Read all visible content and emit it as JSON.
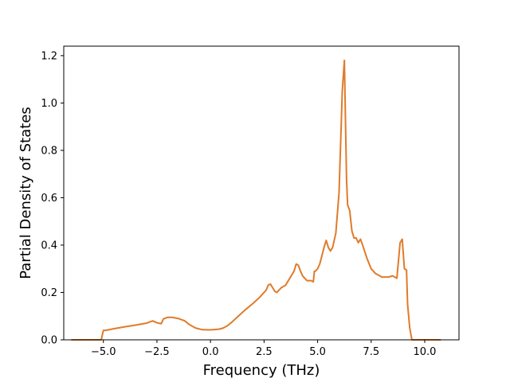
{
  "chart_data": {
    "type": "line",
    "title": "",
    "xlabel": "Frequency (THz)",
    "ylabel": "Partial Density of States",
    "xlim": [
      -6.85,
      11.6
    ],
    "ylim": [
      0.0,
      1.24
    ],
    "xticks": [
      -5.0,
      -2.5,
      0.0,
      2.5,
      5.0,
      7.5,
      10.0
    ],
    "xtick_labels": [
      "−5.0",
      "−2.5",
      "0.0",
      "2.5",
      "5.0",
      "7.5",
      "10.0"
    ],
    "yticks": [
      0.0,
      0.2,
      0.4,
      0.6,
      0.8,
      1.0,
      1.2
    ],
    "ytick_labels": [
      "0.0",
      "0.2",
      "0.4",
      "0.6",
      "0.8",
      "1.0",
      "1.2"
    ],
    "grid": false,
    "legend": "none",
    "series": [
      {
        "color": "#e07b2a",
        "x": [
          -6.5,
          -5.1,
          -5.0,
          -4.9,
          -4.5,
          -4.0,
          -3.5,
          -3.0,
          -2.7,
          -2.5,
          -2.3,
          -2.2,
          -2.0,
          -1.8,
          -1.5,
          -1.2,
          -1.0,
          -0.7,
          -0.4,
          0.0,
          0.4,
          0.6,
          0.8,
          1.0,
          1.3,
          1.6,
          2.0,
          2.3,
          2.5,
          2.6,
          2.7,
          2.8,
          2.9,
          3.0,
          3.1,
          3.3,
          3.5,
          3.7,
          3.9,
          4.0,
          4.1,
          4.2,
          4.3,
          4.5,
          4.7,
          4.8,
          4.85,
          4.9,
          4.95,
          5.0,
          5.1,
          5.3,
          5.4,
          5.5,
          5.6,
          5.7,
          5.85,
          6.0,
          6.1,
          6.15,
          6.25,
          6.35,
          6.4,
          6.5,
          6.6,
          6.7,
          6.75,
          6.8,
          6.9,
          7.0,
          7.1,
          7.3,
          7.5,
          7.7,
          8.0,
          8.3,
          8.5,
          8.7,
          8.85,
          8.95,
          9.05,
          9.15,
          9.2,
          9.3,
          9.4,
          10.75
        ],
        "y": [
          0.0,
          0.0,
          0.04,
          0.04,
          0.047,
          0.055,
          0.062,
          0.07,
          0.08,
          0.072,
          0.068,
          0.088,
          0.095,
          0.095,
          0.09,
          0.08,
          0.065,
          0.05,
          0.043,
          0.042,
          0.045,
          0.05,
          0.06,
          0.075,
          0.1,
          0.125,
          0.155,
          0.18,
          0.2,
          0.21,
          0.232,
          0.235,
          0.22,
          0.205,
          0.2,
          0.22,
          0.23,
          0.26,
          0.29,
          0.32,
          0.315,
          0.29,
          0.27,
          0.25,
          0.25,
          0.245,
          0.29,
          0.29,
          0.295,
          0.3,
          0.32,
          0.39,
          0.42,
          0.39,
          0.375,
          0.39,
          0.45,
          0.62,
          0.9,
          1.05,
          1.18,
          0.68,
          0.57,
          0.545,
          0.46,
          0.43,
          0.43,
          0.43,
          0.41,
          0.425,
          0.4,
          0.345,
          0.3,
          0.28,
          0.265,
          0.265,
          0.27,
          0.26,
          0.41,
          0.425,
          0.3,
          0.295,
          0.15,
          0.05,
          0.0,
          0.0
        ]
      }
    ]
  }
}
